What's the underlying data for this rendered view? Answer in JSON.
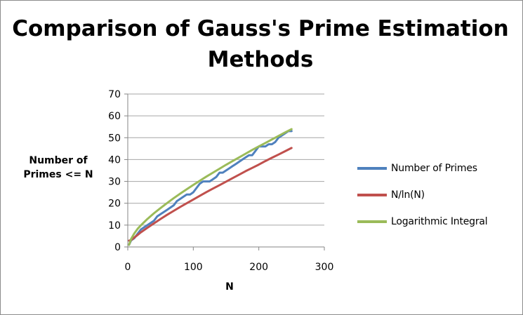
{
  "chart_data": {
    "type": "line",
    "title": "Comparison of Gauss's Prime Estimation Methods",
    "xlabel": "N",
    "ylabel": "Number of Primes <= N",
    "xlim": [
      0,
      300
    ],
    "ylim": [
      0,
      70
    ],
    "xticks": [
      "0",
      "100",
      "200",
      "300"
    ],
    "yticks": [
      "0",
      "10",
      "20",
      "30",
      "40",
      "50",
      "60",
      "70"
    ],
    "grid": "horizontal",
    "legend_position": "right",
    "series": [
      {
        "name": "Number of Primes",
        "color": "#4f81bd",
        "x": [
          2,
          5,
          10,
          15,
          20,
          25,
          30,
          35,
          40,
          45,
          50,
          55,
          60,
          65,
          70,
          75,
          80,
          85,
          90,
          95,
          100,
          105,
          110,
          115,
          120,
          125,
          130,
          135,
          140,
          145,
          150,
          155,
          160,
          165,
          170,
          175,
          180,
          185,
          190,
          195,
          200,
          205,
          210,
          215,
          220,
          225,
          230,
          235,
          240,
          245,
          250
        ],
        "y": [
          1,
          3,
          4,
          6,
          8,
          9,
          10,
          11,
          12,
          14,
          15,
          16,
          17,
          18,
          19,
          21,
          22,
          23,
          24,
          24,
          25,
          27,
          29,
          30,
          30,
          30,
          31,
          32,
          34,
          34,
          35,
          36,
          37,
          38,
          39,
          40,
          41,
          42,
          42,
          44,
          46,
          46,
          46,
          47,
          47,
          48,
          50,
          51,
          52,
          53,
          53
        ]
      },
      {
        "name": "N/ln(N)",
        "color": "#c0504d",
        "x": [
          2,
          5,
          10,
          15,
          20,
          30,
          40,
          50,
          60,
          70,
          80,
          90,
          100,
          110,
          120,
          130,
          140,
          150,
          160,
          170,
          180,
          190,
          200,
          210,
          220,
          230,
          240,
          250
        ],
        "y": [
          2.9,
          3.1,
          4.3,
          5.5,
          6.7,
          8.8,
          10.8,
          12.8,
          14.7,
          16.5,
          18.3,
          20.0,
          21.7,
          23.4,
          25.1,
          26.7,
          28.3,
          29.9,
          31.5,
          33.1,
          34.7,
          36.2,
          37.7,
          39.3,
          40.8,
          42.3,
          43.8,
          45.3
        ]
      },
      {
        "name": "Logarithmic Integral",
        "color": "#9bbb59",
        "x": [
          2,
          5,
          10,
          15,
          20,
          30,
          40,
          50,
          60,
          70,
          80,
          90,
          100,
          110,
          120,
          130,
          140,
          150,
          160,
          170,
          180,
          190,
          200,
          210,
          220,
          230,
          240,
          250
        ],
        "y": [
          1.0,
          3.6,
          6.2,
          8.3,
          9.9,
          12.8,
          15.4,
          17.8,
          20.1,
          22.3,
          24.4,
          26.4,
          28.4,
          30.3,
          32.2,
          34.0,
          35.8,
          37.6,
          39.3,
          41.0,
          42.7,
          44.4,
          46.0,
          47.6,
          49.2,
          50.8,
          52.4,
          53.9
        ]
      }
    ]
  }
}
